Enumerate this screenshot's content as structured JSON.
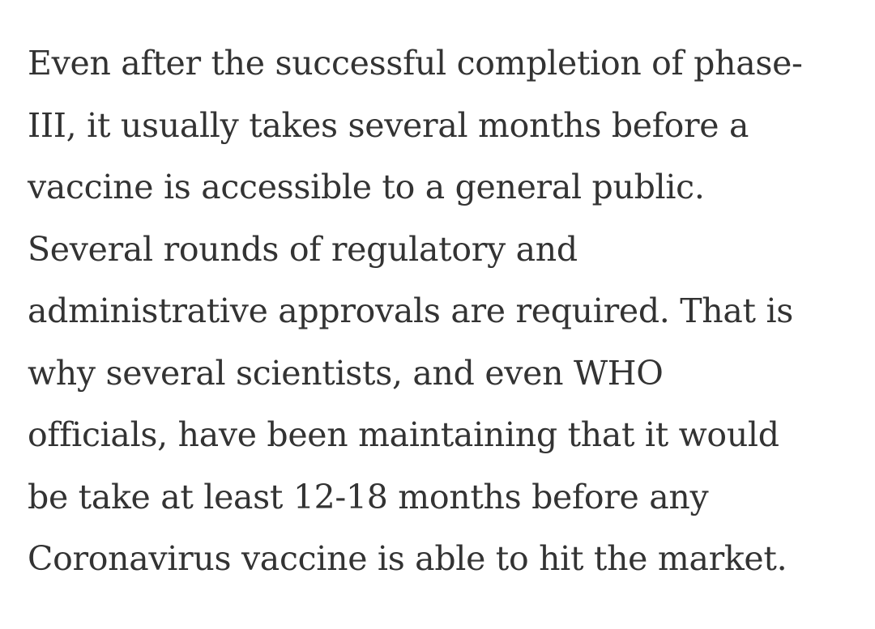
{
  "article": {
    "paragraph_lines": [
      "Even after the successful completion of phase-",
      "III, it usually takes several months before a",
      "vaccine is accessible to a general public.",
      "Several rounds of regulatory and",
      "administrative approvals are required. That is",
      "why several scientists, and even WHO",
      "officials, have been maintaining that it would",
      "be take at least 12-18 months before any",
      "Coronavirus vaccine is able to hit the market."
    ]
  },
  "colors": {
    "background": "#ffffff",
    "text": "#333333"
  }
}
